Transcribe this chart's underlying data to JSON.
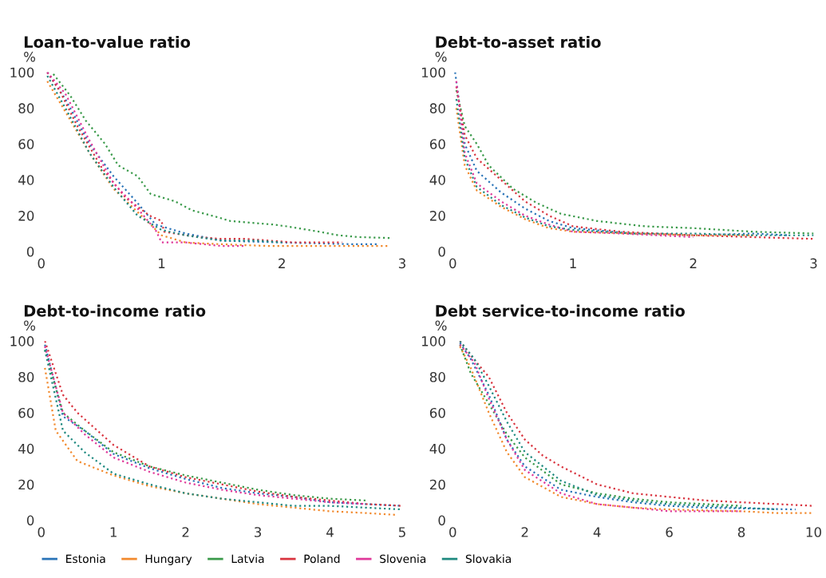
{
  "chart_data": [
    {
      "type": "line",
      "title": "Loan-to-value ratio",
      "ylabel": "%",
      "xlim": [
        0,
        3
      ],
      "ylim": [
        0,
        100
      ],
      "xticks": [
        0,
        1,
        2,
        3
      ],
      "yticks": [
        0,
        20,
        40,
        60,
        80,
        100
      ],
      "grid": false,
      "line_style": "dotted",
      "marker": "none",
      "legend": "bottom",
      "series": [
        {
          "name": "Estonia",
          "color": "#2a74b8",
          "x": [
            0.05,
            0.2,
            0.4,
            0.6,
            0.8,
            0.95,
            1.2,
            1.5,
            2.0,
            2.6,
            2.8
          ],
          "values": [
            100,
            85,
            60,
            42,
            27,
            15,
            10,
            6,
            5,
            4,
            4
          ]
        },
        {
          "name": "Hungary",
          "color": "#f28a2e",
          "x": [
            0.05,
            0.2,
            0.4,
            0.6,
            0.8,
            1.0,
            1.2,
            1.5,
            1.9,
            2.4,
            2.9
          ],
          "values": [
            95,
            78,
            55,
            35,
            22,
            9,
            5,
            4,
            3,
            3,
            3
          ]
        },
        {
          "name": "Latvia",
          "color": "#3a9a4a",
          "x": [
            0.1,
            0.24,
            0.37,
            0.53,
            0.64,
            0.8,
            0.91,
            1.11,
            1.25,
            1.47,
            1.57,
            1.93,
            2.04,
            2.31,
            2.47,
            2.64,
            2.9
          ],
          "values": [
            99,
            87,
            73,
            60,
            48,
            42,
            32,
            28,
            23,
            19,
            17,
            15,
            14,
            11,
            9,
            8,
            7.5
          ]
        },
        {
          "name": "Poland",
          "color": "#d9343f",
          "x": [
            0.05,
            0.15,
            0.3,
            0.5,
            0.7,
            0.9,
            1.0,
            1.02,
            1.3,
            1.5,
            1.7,
            2.1,
            2.5
          ],
          "values": [
            100,
            90,
            70,
            47,
            30,
            20,
            17,
            11,
            8,
            7,
            7,
            5,
            5
          ]
        },
        {
          "name": "Slovenia",
          "color": "#e0399a",
          "x": [
            0.05,
            0.2,
            0.4,
            0.6,
            0.8,
            0.95,
            1.0,
            1.2,
            1.5,
            1.7
          ],
          "values": [
            100,
            88,
            62,
            38,
            24,
            12,
            5,
            5,
            3,
            3
          ]
        },
        {
          "name": "Slovakia",
          "color": "#1f8a80",
          "x": [
            0.05,
            0.2,
            0.4,
            0.6,
            0.8,
            1.0,
            1.2,
            1.5,
            1.8,
            2.0
          ],
          "values": [
            98,
            80,
            55,
            36,
            20,
            12,
            9,
            6,
            6,
            5
          ]
        }
      ]
    },
    {
      "type": "line",
      "title": "Debt-to-asset ratio",
      "ylabel": "%",
      "xlim": [
        0,
        3
      ],
      "ylim": [
        0,
        100
      ],
      "xticks": [
        0,
        1,
        2,
        3
      ],
      "yticks": [
        0,
        20,
        40,
        60,
        80,
        100
      ],
      "grid": false,
      "line_style": "dotted",
      "marker": "none",
      "series": [
        {
          "color": "#2a74b8",
          "x": [
            0.02,
            0.1,
            0.2,
            0.4,
            0.6,
            0.8,
            1.0,
            1.5,
            2.0,
            2.5,
            2.8
          ],
          "values": [
            100,
            60,
            45,
            33,
            24,
            17,
            13,
            10,
            9,
            10,
            9
          ]
        },
        {
          "color": "#f28a2e",
          "x": [
            0.03,
            0.1,
            0.2,
            0.4,
            0.6,
            0.8,
            1.0,
            1.5,
            2.0,
            2.5
          ],
          "values": [
            80,
            48,
            34,
            25,
            18,
            13,
            11,
            10,
            9,
            9
          ]
        },
        {
          "color": "#3a9a4a",
          "x": [
            0.03,
            0.1,
            0.2,
            0.3,
            0.5,
            0.7,
            0.9,
            1.2,
            1.6,
            2.0,
            2.5,
            3.0
          ],
          "values": [
            90,
            70,
            60,
            48,
            35,
            27,
            21,
            17,
            14,
            13,
            11,
            10
          ]
        },
        {
          "color": "#d9343f",
          "x": [
            0.03,
            0.1,
            0.2,
            0.4,
            0.6,
            0.8,
            1.0,
            1.4,
            2.0,
            2.5,
            3.0
          ],
          "values": [
            92,
            65,
            52,
            40,
            28,
            20,
            14,
            11,
            9,
            8,
            7
          ]
        },
        {
          "color": "#e0399a",
          "x": [
            0.03,
            0.1,
            0.2,
            0.4,
            0.6,
            0.8,
            1.0,
            1.4,
            2.0
          ],
          "values": [
            95,
            55,
            38,
            28,
            20,
            15,
            11,
            10,
            8
          ]
        },
        {
          "color": "#1f8a80",
          "x": [
            0.03,
            0.1,
            0.2,
            0.4,
            0.6,
            0.8,
            1.0,
            1.5,
            2.0,
            2.5,
            3.0
          ],
          "values": [
            85,
            52,
            36,
            26,
            19,
            14,
            12,
            10,
            10,
            9,
            9
          ]
        }
      ]
    },
    {
      "type": "line",
      "title": "Debt-to-income ratio",
      "ylabel": "%",
      "xlim": [
        0,
        5
      ],
      "ylim": [
        0,
        100
      ],
      "xticks": [
        0,
        1,
        2,
        3,
        4,
        5
      ],
      "yticks": [
        0,
        20,
        40,
        60,
        80,
        100
      ],
      "grid": false,
      "line_style": "dotted",
      "marker": "none",
      "series": [
        {
          "color": "#2a74b8",
          "x": [
            0.05,
            0.3,
            0.6,
            1.0,
            1.5,
            2.0,
            2.5,
            3.0,
            3.5,
            4.0,
            4.5,
            5.0
          ],
          "values": [
            98,
            58,
            50,
            37,
            29,
            23,
            18,
            15,
            13,
            10,
            9,
            8
          ]
        },
        {
          "color": "#f28a2e",
          "x": [
            0.05,
            0.2,
            0.5,
            1.0,
            1.5,
            2.0,
            2.5,
            3.0,
            3.5,
            4.0,
            4.5,
            4.9
          ],
          "values": [
            85,
            50,
            33,
            25,
            19,
            15,
            12,
            9,
            7,
            5,
            4,
            3
          ]
        },
        {
          "color": "#3a9a4a",
          "x": [
            0.05,
            0.3,
            0.6,
            1.0,
            1.5,
            2.0,
            2.5,
            3.0,
            3.5,
            4.0,
            4.5
          ],
          "values": [
            95,
            60,
            50,
            38,
            30,
            25,
            21,
            17,
            14,
            12,
            11
          ]
        },
        {
          "color": "#d9343f",
          "x": [
            0.05,
            0.3,
            0.5,
            1.0,
            1.5,
            2.0,
            2.5,
            3.0,
            3.5,
            4.0,
            4.5,
            5.0
          ],
          "values": [
            100,
            70,
            60,
            42,
            30,
            24,
            20,
            16,
            13,
            11,
            9,
            8
          ]
        },
        {
          "color": "#e0399a",
          "x": [
            0.05,
            0.3,
            0.6,
            1.0,
            1.5,
            2.0,
            2.5,
            3.0,
            3.5,
            4.0,
            4.5
          ],
          "values": [
            97,
            60,
            48,
            35,
            27,
            21,
            17,
            14,
            12,
            10,
            9
          ]
        },
        {
          "color": "#1f8a80",
          "x": [
            0.05,
            0.3,
            0.6,
            1.0,
            1.5,
            2.0,
            2.5,
            3.0,
            3.5,
            4.0,
            5.0
          ],
          "values": [
            95,
            50,
            38,
            26,
            20,
            15,
            12,
            10,
            8,
            8,
            6
          ]
        }
      ]
    },
    {
      "type": "line",
      "title": "Debt service-to-income ratio",
      "ylabel": "%",
      "xlim": [
        0,
        10
      ],
      "ylim": [
        0,
        100
      ],
      "xticks": [
        0,
        2,
        4,
        6,
        8,
        10
      ],
      "yticks": [
        0,
        20,
        40,
        60,
        80,
        100
      ],
      "grid": false,
      "line_style": "dotted",
      "marker": "none",
      "series": [
        {
          "color": "#2a74b8",
          "x": [
            0.2,
            0.5,
            1.0,
            1.5,
            2.0,
            3.0,
            4.0,
            5.0,
            6.0,
            7.0,
            9.5
          ],
          "values": [
            99,
            90,
            70,
            45,
            30,
            17,
            13,
            10,
            8,
            7,
            6
          ]
        },
        {
          "color": "#f28a2e",
          "x": [
            0.2,
            0.5,
            1.0,
            1.5,
            2.0,
            3.0,
            4.0,
            5.0,
            6.0,
            8.0,
            9.0,
            10.0
          ],
          "values": [
            97,
            85,
            60,
            38,
            24,
            13,
            9,
            7,
            6,
            5,
            4,
            4
          ]
        },
        {
          "color": "#3a9a4a",
          "x": [
            0.2,
            0.5,
            1.0,
            1.5,
            2.0,
            3.0,
            4.0,
            5.0,
            6.0,
            7.0,
            8.0
          ],
          "values": [
            98,
            82,
            65,
            48,
            35,
            20,
            15,
            12,
            10,
            9,
            8
          ]
        },
        {
          "color": "#d9343f",
          "x": [
            0.2,
            0.5,
            1.0,
            1.5,
            2.0,
            2.5,
            3.0,
            4.0,
            5.0,
            6.0,
            7.0,
            8.0,
            9.0,
            10.0
          ],
          "values": [
            100,
            92,
            80,
            60,
            45,
            36,
            30,
            20,
            15,
            13,
            11,
            10,
            9,
            8
          ]
        },
        {
          "color": "#e0399a",
          "x": [
            0.2,
            0.6,
            1.0,
            1.5,
            2.0,
            3.0,
            4.0,
            5.0,
            6.0,
            8.0
          ],
          "values": [
            98,
            88,
            68,
            45,
            28,
            15,
            9,
            7,
            5,
            5
          ]
        },
        {
          "color": "#1f8a80",
          "x": [
            0.2,
            0.6,
            1.0,
            1.5,
            2.0,
            3.0,
            4.0,
            5.0,
            6.0,
            7.0,
            8.0,
            9.0
          ],
          "values": [
            100,
            90,
            75,
            55,
            38,
            22,
            14,
            11,
            9,
            8,
            7,
            6
          ]
        }
      ]
    }
  ]
}
